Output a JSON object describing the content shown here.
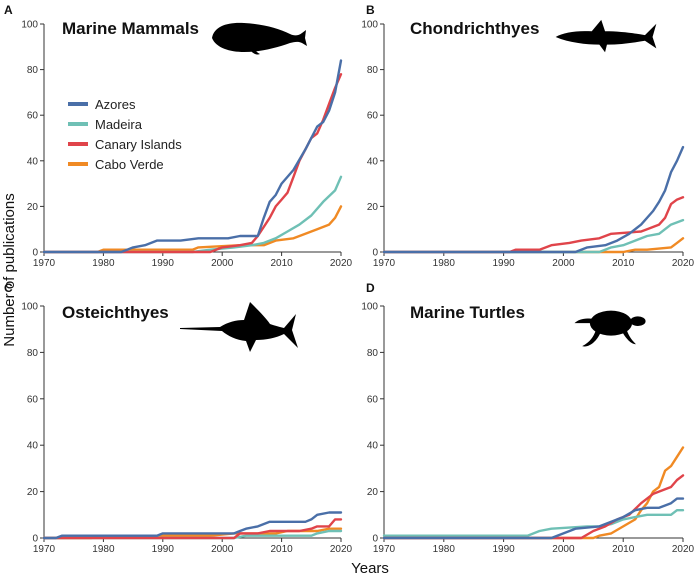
{
  "chart_data": {
    "type": "line",
    "shared_ylabel": "Number of publications",
    "shared_xlabel": "Years",
    "xlim": [
      1970,
      2020
    ],
    "ylim": [
      0,
      100
    ],
    "x_ticks": [
      "1970",
      "1980",
      "1990",
      "2000",
      "2010",
      "2020"
    ],
    "y_ticks": [
      "0",
      "20",
      "40",
      "60",
      "80",
      "100"
    ],
    "series_names": [
      "Azores",
      "Madeira",
      "Canary Islands",
      "Cabo Verde"
    ],
    "series_colors": [
      "#4a6fa8",
      "#6fc0b5",
      "#e0444a",
      "#f08a24"
    ],
    "panels": [
      {
        "letter": "A",
        "title": "Marine Mammals",
        "silhouette": "whale-silhouette-icon",
        "series": [
          {
            "name": "Azores",
            "points": [
              [
                1970,
                0
              ],
              [
                1983,
                0
              ],
              [
                1985,
                2
              ],
              [
                1987,
                3
              ],
              [
                1989,
                5
              ],
              [
                1993,
                5
              ],
              [
                1996,
                6
              ],
              [
                2001,
                6
              ],
              [
                2003,
                7
              ],
              [
                2006,
                7
              ],
              [
                2007,
                15
              ],
              [
                2008,
                22
              ],
              [
                2009,
                25
              ],
              [
                2010,
                30
              ],
              [
                2012,
                36
              ],
              [
                2014,
                45
              ],
              [
                2016,
                55
              ],
              [
                2017,
                57
              ],
              [
                2018,
                62
              ],
              [
                2019,
                70
              ],
              [
                2020,
                84
              ]
            ]
          },
          {
            "name": "Madeira",
            "points": [
              [
                1970,
                0
              ],
              [
                1995,
                0
              ],
              [
                1998,
                1
              ],
              [
                2002,
                2
              ],
              [
                2005,
                3
              ],
              [
                2007,
                4
              ],
              [
                2009,
                6
              ],
              [
                2011,
                9
              ],
              [
                2013,
                12
              ],
              [
                2015,
                16
              ],
              [
                2017,
                22
              ],
              [
                2019,
                27
              ],
              [
                2020,
                33
              ]
            ]
          },
          {
            "name": "Canary Islands",
            "points": [
              [
                1970,
                0
              ],
              [
                1998,
                0
              ],
              [
                2000,
                2
              ],
              [
                2003,
                3
              ],
              [
                2005,
                4
              ],
              [
                2006,
                7
              ],
              [
                2007,
                11
              ],
              [
                2008,
                15
              ],
              [
                2009,
                20
              ],
              [
                2010,
                23
              ],
              [
                2011,
                26
              ],
              [
                2012,
                33
              ],
              [
                2013,
                40
              ],
              [
                2014,
                45
              ],
              [
                2015,
                50
              ],
              [
                2016,
                52
              ],
              [
                2017,
                58
              ],
              [
                2018,
                65
              ],
              [
                2019,
                72
              ],
              [
                2020,
                78
              ]
            ]
          },
          {
            "name": "Cabo Verde",
            "points": [
              [
                1970,
                0
              ],
              [
                1979,
                0
              ],
              [
                1980,
                1
              ],
              [
                1983,
                1
              ],
              [
                1995,
                1
              ],
              [
                1996,
                2
              ],
              [
                2003,
                3
              ],
              [
                2007,
                3
              ],
              [
                2009,
                5
              ],
              [
                2012,
                6
              ],
              [
                2014,
                8
              ],
              [
                2016,
                10
              ],
              [
                2018,
                12
              ],
              [
                2019,
                15
              ],
              [
                2020,
                20
              ]
            ]
          }
        ]
      },
      {
        "letter": "B",
        "title": "Chondrichthyes",
        "silhouette": "shark-silhouette-icon",
        "series": [
          {
            "name": "Azores",
            "points": [
              [
                1970,
                0
              ],
              [
                2002,
                0
              ],
              [
                2004,
                2
              ],
              [
                2007,
                3
              ],
              [
                2009,
                5
              ],
              [
                2011,
                8
              ],
              [
                2013,
                12
              ],
              [
                2015,
                18
              ],
              [
                2016,
                22
              ],
              [
                2017,
                27
              ],
              [
                2018,
                35
              ],
              [
                2019,
                40
              ],
              [
                2020,
                46
              ]
            ]
          },
          {
            "name": "Madeira",
            "points": [
              [
                1970,
                0
              ],
              [
                2006,
                0
              ],
              [
                2008,
                2
              ],
              [
                2010,
                3
              ],
              [
                2012,
                5
              ],
              [
                2014,
                7
              ],
              [
                2016,
                8
              ],
              [
                2018,
                12
              ],
              [
                2020,
                14
              ]
            ]
          },
          {
            "name": "Canary Islands",
            "points": [
              [
                1970,
                0
              ],
              [
                1991,
                0
              ],
              [
                1992,
                1
              ],
              [
                1996,
                1
              ],
              [
                1998,
                3
              ],
              [
                2001,
                4
              ],
              [
                2003,
                5
              ],
              [
                2006,
                6
              ],
              [
                2008,
                8
              ],
              [
                2013,
                9
              ],
              [
                2014,
                10
              ],
              [
                2016,
                12
              ],
              [
                2017,
                15
              ],
              [
                2018,
                21
              ],
              [
                2019,
                23
              ],
              [
                2020,
                24
              ]
            ]
          },
          {
            "name": "Cabo Verde",
            "points": [
              [
                1970,
                0
              ],
              [
                2010,
                0
              ],
              [
                2012,
                1
              ],
              [
                2014,
                1
              ],
              [
                2018,
                2
              ],
              [
                2019,
                4
              ],
              [
                2020,
                6
              ]
            ]
          }
        ]
      },
      {
        "letter": "C",
        "title": "Osteichthyes",
        "silhouette": "marlin-silhouette-icon",
        "series": [
          {
            "name": "Azores",
            "points": [
              [
                1970,
                0
              ],
              [
                1972,
                0
              ],
              [
                1973,
                1
              ],
              [
                1989,
                1
              ],
              [
                1990,
                2
              ],
              [
                2002,
                2
              ],
              [
                2003,
                3
              ],
              [
                2004,
                4
              ],
              [
                2006,
                5
              ],
              [
                2008,
                7
              ],
              [
                2014,
                7
              ],
              [
                2015,
                8
              ],
              [
                2016,
                10
              ],
              [
                2018,
                11
              ],
              [
                2020,
                11
              ]
            ]
          },
          {
            "name": "Madeira",
            "points": [
              [
                1970,
                0
              ],
              [
                2002,
                0
              ],
              [
                2004,
                1
              ],
              [
                2015,
                1
              ],
              [
                2016,
                2
              ],
              [
                2018,
                3
              ],
              [
                2020,
                3
              ]
            ]
          },
          {
            "name": "Canary Islands",
            "points": [
              [
                1970,
                0
              ],
              [
                2002,
                0
              ],
              [
                2003,
                2
              ],
              [
                2006,
                2
              ],
              [
                2008,
                3
              ],
              [
                2013,
                3
              ],
              [
                2015,
                4
              ],
              [
                2016,
                5
              ],
              [
                2018,
                5
              ],
              [
                2019,
                8
              ],
              [
                2020,
                8
              ]
            ]
          },
          {
            "name": "Cabo Verde",
            "points": [
              [
                1970,
                0
              ],
              [
                1978,
                0
              ],
              [
                1979,
                1
              ],
              [
                1998,
                1
              ],
              [
                2002,
                2
              ],
              [
                2009,
                2
              ],
              [
                2011,
                3
              ],
              [
                2016,
                3
              ],
              [
                2018,
                4
              ],
              [
                2020,
                4
              ]
            ]
          }
        ]
      },
      {
        "letter": "D",
        "title": "Marine Turtles",
        "silhouette": "turtle-silhouette-icon",
        "series": [
          {
            "name": "Azores",
            "points": [
              [
                1970,
                0
              ],
              [
                1998,
                0
              ],
              [
                2000,
                2
              ],
              [
                2002,
                4
              ],
              [
                2006,
                5
              ],
              [
                2008,
                7
              ],
              [
                2010,
                9
              ],
              [
                2012,
                12
              ],
              [
                2014,
                13
              ],
              [
                2016,
                13
              ],
              [
                2017,
                14
              ],
              [
                2018,
                15
              ],
              [
                2019,
                17
              ],
              [
                2020,
                17
              ]
            ]
          },
          {
            "name": "Madeira",
            "points": [
              [
                1970,
                1
              ],
              [
                1994,
                1
              ],
              [
                1996,
                3
              ],
              [
                1998,
                4
              ],
              [
                2004,
                5
              ],
              [
                2006,
                5
              ],
              [
                2008,
                6
              ],
              [
                2010,
                8
              ],
              [
                2012,
                9
              ],
              [
                2014,
                10
              ],
              [
                2018,
                10
              ],
              [
                2019,
                12
              ],
              [
                2020,
                12
              ]
            ]
          },
          {
            "name": "Canary Islands",
            "points": [
              [
                1970,
                0
              ],
              [
                2003,
                0
              ],
              [
                2005,
                3
              ],
              [
                2007,
                5
              ],
              [
                2009,
                8
              ],
              [
                2011,
                10
              ],
              [
                2013,
                15
              ],
              [
                2015,
                19
              ],
              [
                2017,
                21
              ],
              [
                2018,
                22
              ],
              [
                2019,
                25
              ],
              [
                2020,
                27
              ]
            ]
          },
          {
            "name": "Cabo Verde",
            "points": [
              [
                1970,
                0
              ],
              [
                2005,
                0
              ],
              [
                2006,
                1
              ],
              [
                2008,
                2
              ],
              [
                2010,
                5
              ],
              [
                2012,
                8
              ],
              [
                2013,
                12
              ],
              [
                2014,
                15
              ],
              [
                2015,
                20
              ],
              [
                2016,
                22
              ],
              [
                2017,
                29
              ],
              [
                2018,
                31
              ],
              [
                2019,
                35
              ],
              [
                2020,
                39
              ]
            ]
          }
        ]
      }
    ]
  }
}
